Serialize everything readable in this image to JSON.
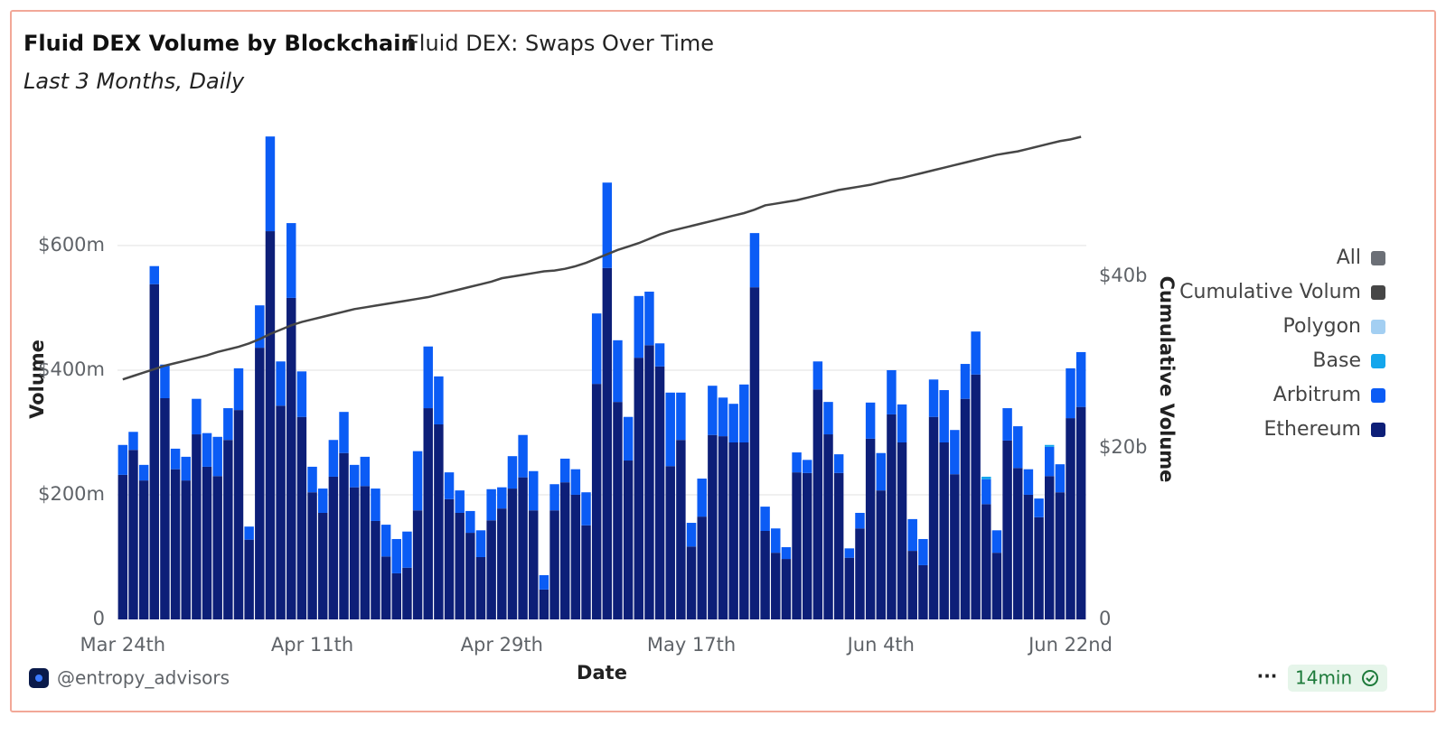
{
  "chart_data": {
    "type": "bar",
    "stacked": true,
    "title": "Fluid DEX Volume by Blockchain",
    "query_name": "Fluid DEX: Swaps Over Time",
    "subtitle": "Last 3 Months, Daily",
    "x_label": "Date",
    "y_label": "Volume",
    "y2_label": "Cumulative Volume",
    "legend_all": {
      "name": "All",
      "color": "#6b6f76"
    },
    "legend_position": "right",
    "grid": true,
    "categories": [
      "Mar 24th",
      null,
      null,
      null,
      null,
      null,
      null,
      null,
      null,
      null,
      null,
      null,
      null,
      null,
      null,
      null,
      null,
      null,
      "Apr 11th",
      null,
      null,
      null,
      null,
      null,
      null,
      null,
      null,
      null,
      null,
      null,
      null,
      null,
      null,
      null,
      null,
      null,
      "Apr 29th",
      null,
      null,
      null,
      null,
      null,
      null,
      null,
      null,
      null,
      null,
      null,
      null,
      null,
      null,
      null,
      null,
      null,
      "May 17th",
      null,
      null,
      null,
      null,
      null,
      null,
      null,
      null,
      null,
      null,
      null,
      null,
      null,
      null,
      null,
      null,
      null,
      "Jun 4th",
      null,
      null,
      null,
      null,
      null,
      null,
      null,
      null,
      null,
      null,
      null,
      null,
      null,
      null,
      null,
      null,
      null,
      "Jun 22nd",
      null
    ],
    "ylim": [
      0,
      780
    ],
    "yticks": [
      0,
      {
        "value": 200,
        "label": "$200m"
      },
      {
        "value": 400,
        "label": "$400m"
      },
      {
        "value": 600,
        "label": "$600m"
      }
    ],
    "y2lim": [
      0,
      56.7
    ],
    "y2ticks": [
      0,
      {
        "value": 20,
        "label": "$20b"
      },
      {
        "value": 40,
        "label": "$40b"
      }
    ],
    "series": [
      {
        "name": "Ethereum",
        "color": "#0d1f78",
        "values": [
          232,
          272,
          223,
          538,
          355,
          241,
          223,
          297,
          245,
          230,
          288,
          336,
          128,
          436,
          623,
          343,
          516,
          325,
          204,
          171,
          229,
          267,
          212,
          214,
          158,
          101,
          74,
          83,
          175,
          339,
          313,
          193,
          171,
          139,
          100,
          159,
          178,
          210,
          228,
          175,
          48,
          175,
          220,
          200,
          151,
          378,
          564,
          349,
          255,
          420,
          440,
          406,
          246,
          288,
          117,
          165,
          296,
          294,
          284,
          284,
          533,
          142,
          107,
          97,
          236,
          235,
          369,
          297,
          235,
          99,
          146,
          290,
          207,
          329,
          284,
          110,
          87,
          325,
          284,
          233,
          354,
          393,
          185,
          107,
          287,
          243,
          200,
          164,
          230,
          204,
          323,
          341
        ]
      },
      {
        "name": "Arbitrum",
        "color": "#0b5cf5",
        "values": [
          48,
          29,
          25,
          29,
          54,
          33,
          38,
          57,
          54,
          63,
          51,
          67,
          21,
          68,
          152,
          71,
          120,
          73,
          41,
          39,
          59,
          66,
          36,
          47,
          52,
          51,
          55,
          58,
          95,
          99,
          77,
          43,
          36,
          35,
          43,
          50,
          34,
          52,
          68,
          63,
          23,
          42,
          38,
          41,
          53,
          113,
          137,
          99,
          70,
          99,
          86,
          37,
          118,
          76,
          38,
          61,
          79,
          62,
          62,
          93,
          87,
          39,
          39,
          19,
          32,
          21,
          45,
          52,
          30,
          15,
          25,
          58,
          60,
          71,
          61,
          51,
          42,
          60,
          84,
          71,
          56,
          69,
          40,
          36,
          52,
          67,
          41,
          30,
          47,
          45,
          80,
          88
        ]
      },
      {
        "name": "Base",
        "color": "#14a6ec",
        "values": [
          0,
          0,
          0,
          0,
          0,
          0,
          0,
          0,
          0,
          0,
          0,
          0,
          0,
          0,
          0,
          0,
          0,
          0,
          0,
          0,
          0,
          0,
          0,
          0,
          0,
          0,
          0,
          0,
          0,
          0,
          0,
          0,
          0,
          0,
          0,
          0,
          0,
          0,
          0,
          0,
          0,
          0,
          0,
          0,
          0,
          0,
          0,
          0,
          0,
          0,
          0,
          0,
          0,
          0,
          0,
          0,
          0,
          0,
          0,
          0,
          0,
          0,
          0,
          0,
          0,
          0,
          0,
          0,
          0,
          0,
          0,
          0,
          0,
          0,
          0,
          0,
          0,
          0,
          0,
          0,
          0,
          0,
          4,
          0,
          0,
          0,
          0,
          0,
          3,
          0,
          0,
          0
        ]
      },
      {
        "name": "Polygon",
        "color": "#a3cff2",
        "values": [
          0,
          0,
          0,
          0,
          0,
          0,
          0,
          0,
          0,
          0,
          0,
          0,
          0,
          0,
          0,
          0,
          0,
          0,
          0,
          0,
          0,
          0,
          0,
          0,
          0,
          0,
          0,
          0,
          0,
          0,
          0,
          0,
          0,
          0,
          0,
          0,
          0,
          0,
          0,
          0,
          0,
          0,
          0,
          0,
          0,
          0,
          0,
          0,
          0,
          0,
          0,
          0,
          0,
          0,
          0,
          0,
          0,
          0,
          0,
          0,
          0,
          0,
          0,
          0,
          0,
          0,
          0,
          0,
          0,
          0,
          0,
          0,
          0,
          0,
          0,
          0,
          0,
          0,
          0,
          0,
          0,
          0,
          0,
          0,
          0,
          0,
          0,
          0,
          0,
          0,
          0,
          0
        ]
      },
      {
        "name": "Cumulative Volum",
        "color": "#464646",
        "type": "line",
        "axis": "y2",
        "values": [
          28.0,
          28.4,
          28.8,
          29.2,
          29.6,
          29.9,
          30.2,
          30.5,
          30.8,
          31.2,
          31.5,
          31.8,
          32.2,
          32.7,
          33.3,
          33.8,
          34.3,
          34.7,
          35.0,
          35.3,
          35.6,
          35.9,
          36.2,
          36.4,
          36.6,
          36.8,
          37.0,
          37.2,
          37.4,
          37.6,
          37.9,
          38.2,
          38.5,
          38.8,
          39.1,
          39.4,
          39.8,
          40.0,
          40.2,
          40.4,
          40.6,
          40.7,
          40.9,
          41.2,
          41.6,
          42.1,
          42.6,
          43.1,
          43.5,
          43.9,
          44.4,
          44.9,
          45.3,
          45.6,
          45.9,
          46.2,
          46.5,
          46.8,
          47.1,
          47.4,
          47.8,
          48.3,
          48.5,
          48.7,
          48.9,
          49.2,
          49.5,
          49.8,
          50.1,
          50.3,
          50.5,
          50.7,
          51.0,
          51.3,
          51.5,
          51.8,
          52.1,
          52.4,
          52.7,
          53.0,
          53.3,
          53.6,
          53.9,
          54.2,
          54.4,
          54.6,
          54.9,
          55.2,
          55.5,
          55.8,
          56.0,
          56.3
        ]
      }
    ]
  },
  "footer": {
    "author": "@entropy_advisors",
    "menu": "···",
    "updated": "14min"
  }
}
